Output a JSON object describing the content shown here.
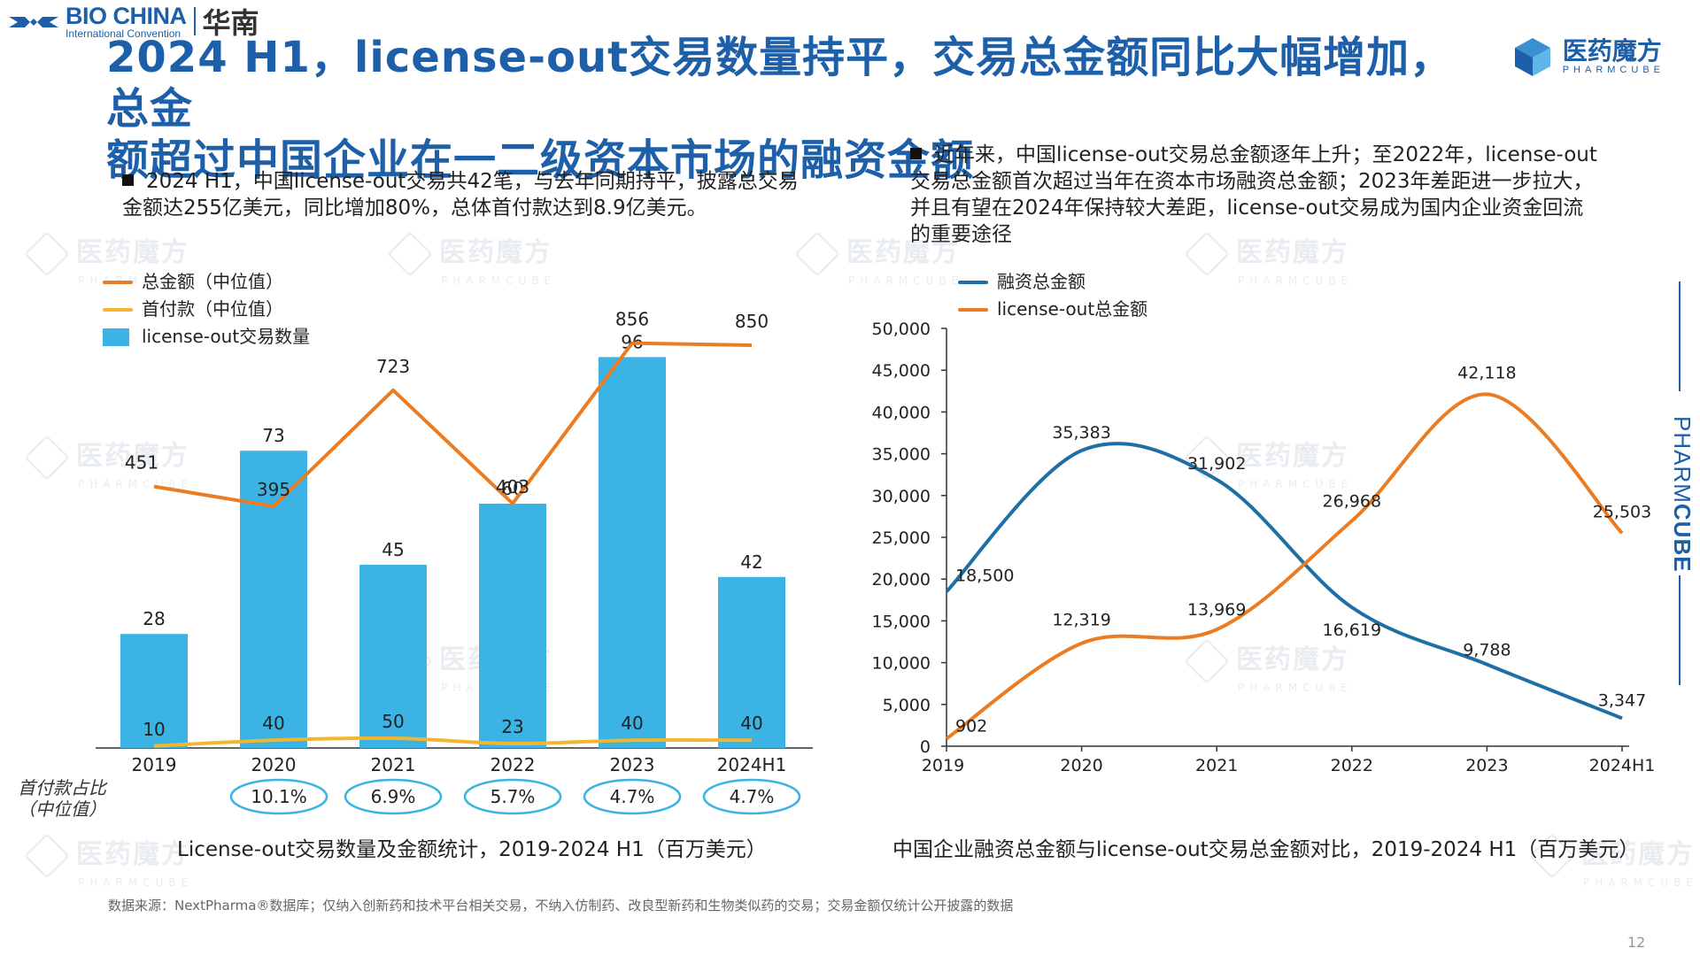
{
  "header": {
    "logo_en": "BIO CHINA",
    "logo_sub": "International Convention",
    "logo_cn": "华南",
    "title_line1": "2024 H1，license-out交易数量持平，交易总金额同比大幅增加，总金",
    "title_line2": "额超过中国企业在一二级资本市场的融资金额",
    "brand_cn": "医药魔方",
    "brand_en": "PHARMCUBE"
  },
  "bullets": {
    "left": "2024 H1，中国license-out交易共42笔，与去年同期持平，披露总交易金额达255亿美元，同比增加80%，总体首付款达到8.9亿美元。",
    "right": "近年来，中国license-out交易总金额逐年上升；至2022年，license-out交易总金额首次超过当年在资本市场融资总金额；2023年差距进一步拉大，并且有望在2024年保持较大差距，license-out交易成为国内企业资金回流的重要途径"
  },
  "colors": {
    "brand": "#1d5fa8",
    "bar": "#3bb3e4",
    "orange": "#ec7c22",
    "yellow": "#f2b630",
    "blue_line": "#1f6fa5",
    "pill": "#3bb3e4"
  },
  "ratio_label": {
    "line1": "首付款占比",
    "line2": "（中位值）"
  },
  "ratios": [
    "10.1%",
    "6.9%",
    "5.7%",
    "4.7%",
    "4.7%"
  ],
  "captions": {
    "left": "License-out交易数量及金额统计，2019-2024 H1（百万美元）",
    "right": "中国企业融资总金额与license-out交易总金额对比，2019-2024 H1（百万美元）"
  },
  "footnote": "数据来源：NextPharma®数据库；仅纳入创新药和技术平台相关交易，不纳入仿制药、改良型新药和生物类似药的交易；交易金额仅统计公开披露的数据",
  "page_number": "12",
  "side_brand": {
    "a": "PHARM",
    "b": "CUBE"
  },
  "chart_data": [
    {
      "type": "bar",
      "title": "License-out交易数量及金额统计，2019-2024 H1（百万美元）",
      "categories": [
        "2019",
        "2020",
        "2021",
        "2022",
        "2023",
        "2024H1"
      ],
      "series": [
        {
          "name": "license-out交易数量",
          "kind": "bar",
          "values": [
            28,
            73,
            45,
            60,
            96,
            42
          ]
        },
        {
          "name": "总金额（中位值）",
          "kind": "line",
          "values": [
            451,
            395,
            723,
            403,
            856,
            850
          ]
        },
        {
          "name": "首付款（中位值）",
          "kind": "line",
          "values": [
            10,
            40,
            50,
            23,
            40,
            40
          ]
        }
      ],
      "legend": [
        "总金额（中位值）",
        "首付款（中位值）",
        "license-out交易数量"
      ],
      "legend_position": "top-left",
      "grid": false
    },
    {
      "type": "line",
      "title": "中国企业融资总金额与license-out交易总金额对比，2019-2024 H1（百万美元）",
      "categories": [
        "2019",
        "2020",
        "2021",
        "2022",
        "2023",
        "2024H1"
      ],
      "series": [
        {
          "name": "融资总金额",
          "values": [
            18500,
            35383,
            31902,
            16619,
            9788,
            3347
          ]
        },
        {
          "name": "license-out总金额",
          "values": [
            902,
            12319,
            13969,
            26968,
            42118,
            25503
          ]
        }
      ],
      "ylim": [
        0,
        50000
      ],
      "yticks": [
        "0",
        "5,000",
        "10,000",
        "15,000",
        "20,000",
        "25,000",
        "30,000",
        "35,000",
        "40,000",
        "45,000",
        "50,000"
      ],
      "data_labels": {
        "融资总金额": [
          "18,500",
          "35,383",
          "31,902",
          "16,619",
          "9,788",
          "3,347"
        ],
        "license-out总金额": [
          "902",
          "12,319",
          "13,969",
          "26,968",
          "42,118",
          "25,503"
        ]
      },
      "legend_position": "top-left",
      "grid": false
    }
  ]
}
